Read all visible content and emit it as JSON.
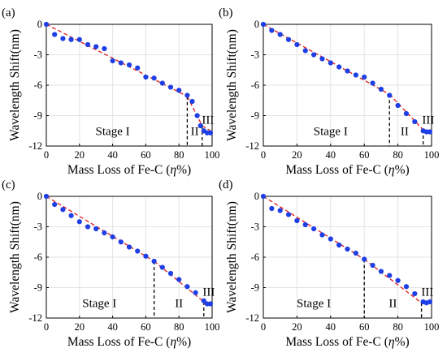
{
  "figure": {
    "colors": {
      "points": "#1f3fe6",
      "fit_line": "#e0191b",
      "stage_divider": "#000000",
      "grid": "#e3e3e3"
    }
  },
  "chart_data": [
    {
      "type": "scatter",
      "panel_label": "(a)",
      "xlabel_prefix": "Mass Loss of Fe-C (",
      "xlabel_var": "η",
      "xlabel_suffix": "%)",
      "ylabel": "Wavelength Shift(nm)",
      "xlim": [
        0,
        100
      ],
      "ylim": [
        -12,
        0
      ],
      "xticks": [
        0,
        20,
        40,
        60,
        80,
        100
      ],
      "yticks": [
        0,
        -3,
        -6,
        -9,
        -12
      ],
      "xtick_labels": [
        "0",
        "20",
        "40",
        "60",
        "80",
        "100"
      ],
      "ytick_labels": [
        "0",
        "-3",
        "-6",
        "-9",
        "-12"
      ],
      "grid": true,
      "x": [
        0,
        5,
        10,
        15,
        20,
        25,
        30,
        35,
        40,
        45,
        50,
        55,
        60,
        65,
        70,
        75,
        80,
        85,
        88,
        91,
        93,
        95,
        97,
        99
      ],
      "y": [
        0,
        -1.0,
        -1.4,
        -1.5,
        -1.5,
        -2.0,
        -2.2,
        -2.4,
        -3.6,
        -3.8,
        -4.0,
        -4.3,
        -5.2,
        -5.3,
        -5.8,
        -6.2,
        -6.5,
        -7.0,
        -7.6,
        -9.0,
        -10.0,
        -10.5,
        -10.7,
        -10.7
      ],
      "fit_segments": [
        {
          "x": [
            0,
            85
          ],
          "y": [
            0,
            -7.1
          ]
        },
        {
          "x": [
            85,
            94
          ],
          "y": [
            -7.1,
            -10.0
          ]
        },
        {
          "x": [
            94,
            100
          ],
          "y": [
            -10.0,
            -10.6
          ]
        }
      ],
      "dividers": [
        85,
        94
      ],
      "stage_labels": [
        {
          "text": "Stage I",
          "x": 40,
          "y": -10.9
        },
        {
          "text": "II",
          "x": 89.5,
          "y": -10.9
        },
        {
          "text": "III",
          "x": 97.5,
          "y": -9.8
        }
      ]
    },
    {
      "type": "scatter",
      "panel_label": "(b)",
      "xlabel_prefix": "Mass Loss of Fe-C (",
      "xlabel_var": "η",
      "xlabel_suffix": "%)",
      "ylabel": "Wavelength Shift(nm)",
      "xlim": [
        0,
        100
      ],
      "ylim": [
        -12,
        0
      ],
      "xticks": [
        0,
        20,
        40,
        60,
        80,
        100
      ],
      "yticks": [
        0,
        -3,
        -6,
        -9,
        -12
      ],
      "xtick_labels": [
        "0",
        "20",
        "40",
        "60",
        "80",
        "100"
      ],
      "ytick_labels": [
        "0",
        "-3",
        "-6",
        "-9",
        "-12"
      ],
      "grid": true,
      "x": [
        0,
        5,
        10,
        15,
        20,
        25,
        30,
        35,
        40,
        45,
        50,
        55,
        60,
        65,
        70,
        75,
        80,
        85,
        90,
        95,
        97,
        99
      ],
      "y": [
        0,
        -0.6,
        -1.0,
        -1.5,
        -2.0,
        -2.6,
        -3.0,
        -3.4,
        -3.8,
        -4.2,
        -4.6,
        -5.0,
        -5.2,
        -5.8,
        -6.4,
        -7.0,
        -8.0,
        -8.8,
        -9.6,
        -10.5,
        -10.6,
        -10.6
      ],
      "fit_segments": [
        {
          "x": [
            0,
            75
          ],
          "y": [
            0,
            -6.9
          ]
        },
        {
          "x": [
            75,
            95
          ],
          "y": [
            -6.9,
            -10.4
          ]
        },
        {
          "x": [
            95,
            100
          ],
          "y": [
            -10.4,
            -10.6
          ]
        }
      ],
      "dividers": [
        75,
        95
      ],
      "stage_labels": [
        {
          "text": "Stage I",
          "x": 40,
          "y": -10.9
        },
        {
          "text": "II",
          "x": 84,
          "y": -10.9
        },
        {
          "text": "III",
          "x": 98,
          "y": -9.8
        }
      ]
    },
    {
      "type": "scatter",
      "panel_label": "(c)",
      "xlabel_prefix": "Mass Loss of Fe-C (",
      "xlabel_var": "η",
      "xlabel_suffix": "%)",
      "ylabel": "Wavelength Shift(nm)",
      "xlim": [
        0,
        100
      ],
      "ylim": [
        -12,
        0
      ],
      "xticks": [
        0,
        20,
        40,
        60,
        80,
        100
      ],
      "yticks": [
        0,
        -3,
        -6,
        -9,
        -12
      ],
      "xtick_labels": [
        "0",
        "20",
        "40",
        "60",
        "80",
        "100"
      ],
      "ytick_labels": [
        "0",
        "-3",
        "-6",
        "-9",
        "-12"
      ],
      "grid": true,
      "x": [
        0,
        5,
        10,
        15,
        20,
        25,
        30,
        35,
        40,
        45,
        50,
        55,
        60,
        65,
        70,
        75,
        80,
        85,
        90,
        95,
        97,
        99
      ],
      "y": [
        0,
        -0.8,
        -1.3,
        -1.9,
        -2.5,
        -3.0,
        -3.2,
        -3.6,
        -4.0,
        -4.5,
        -5.0,
        -5.4,
        -5.9,
        -6.4,
        -7.0,
        -7.6,
        -8.2,
        -8.9,
        -9.5,
        -10.3,
        -10.6,
        -10.6
      ],
      "fit_segments": [
        {
          "x": [
            0,
            65
          ],
          "y": [
            0,
            -6.4
          ]
        },
        {
          "x": [
            65,
            95
          ],
          "y": [
            -6.4,
            -10.4
          ]
        },
        {
          "x": [
            95,
            100
          ],
          "y": [
            -10.4,
            -10.6
          ]
        }
      ],
      "dividers": [
        65,
        95
      ],
      "stage_labels": [
        {
          "text": "Stage I",
          "x": 32,
          "y": -10.9
        },
        {
          "text": "II",
          "x": 80,
          "y": -10.9
        },
        {
          "text": "III",
          "x": 98,
          "y": -9.8
        }
      ]
    },
    {
      "type": "scatter",
      "panel_label": "(d)",
      "xlabel_prefix": "Mass Loss of Fe-C (",
      "xlabel_var": "η",
      "xlabel_suffix": "%)",
      "ylabel": "Wavelength Shift(nm)",
      "xlim": [
        0,
        100
      ],
      "ylim": [
        -12,
        0
      ],
      "xticks": [
        0,
        20,
        40,
        60,
        80,
        100
      ],
      "yticks": [
        0,
        -3,
        -6,
        -9,
        -12
      ],
      "xtick_labels": [
        "0",
        "20",
        "40",
        "60",
        "80",
        "100"
      ],
      "ytick_labels": [
        "0",
        "-3",
        "-6",
        "-9",
        "-12"
      ],
      "grid": true,
      "x": [
        0,
        5,
        10,
        15,
        20,
        25,
        30,
        35,
        40,
        45,
        50,
        55,
        60,
        65,
        70,
        75,
        80,
        85,
        90,
        95,
        97,
        99
      ],
      "y": [
        0,
        -1.2,
        -1.4,
        -1.8,
        -2.4,
        -2.8,
        -3.2,
        -3.8,
        -4.2,
        -4.8,
        -5.2,
        -5.6,
        -6.2,
        -6.8,
        -7.4,
        -7.8,
        -8.3,
        -8.9,
        -9.6,
        -10.4,
        -10.5,
        -10.4
      ],
      "fit_segments": [
        {
          "x": [
            0,
            60
          ],
          "y": [
            0,
            -6.2
          ]
        },
        {
          "x": [
            60,
            94
          ],
          "y": [
            -6.2,
            -10.5
          ]
        },
        {
          "x": [
            94,
            100
          ],
          "y": [
            -10.5,
            -10.4
          ]
        }
      ],
      "dividers": [
        60,
        94
      ],
      "stage_labels": [
        {
          "text": "Stage I",
          "x": 30,
          "y": -10.9
        },
        {
          "text": "II",
          "x": 77,
          "y": -10.9
        },
        {
          "text": "III",
          "x": 97.5,
          "y": -9.8
        }
      ]
    }
  ]
}
